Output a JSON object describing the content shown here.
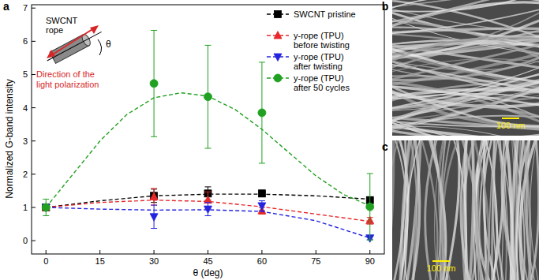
{
  "chart_data": {
    "type": "scatter",
    "panel_label": "a",
    "x_label": "θ (deg)",
    "y_label": "Normalized G-band intensity",
    "xlim": [
      -4,
      94
    ],
    "xticks": [
      0,
      15,
      30,
      45,
      60,
      75,
      90
    ],
    "ylim": [
      -0.4,
      7.1
    ],
    "yticks": [
      0,
      1,
      2,
      3,
      4,
      5,
      6,
      7
    ],
    "grid": false,
    "legend": "upper right",
    "inset": {
      "title": "SWCNT rope",
      "angle_label": "θ",
      "polarization_label": "Direction of the light polarization"
    },
    "series": [
      {
        "name": "SWCNT pristine",
        "color": "#000000",
        "marker": "square",
        "line_style": "dashed",
        "x": [
          0,
          30,
          45,
          60,
          90
        ],
        "values": [
          1,
          1.35,
          1.42,
          1.42,
          1.22
        ],
        "errors": [
          0.08,
          0.2,
          0.2,
          0.1,
          0.1
        ],
        "fit_x": [
          0,
          15,
          30,
          45,
          60,
          75,
          90
        ],
        "fit_values": [
          1,
          1.2,
          1.35,
          1.4,
          1.4,
          1.35,
          1.25
        ]
      },
      {
        "name": "y-rope (TPU) before twisting",
        "color": "#e8282b",
        "marker": "triangle-up",
        "line_style": "dashed",
        "x": [
          0,
          30,
          45,
          60,
          90
        ],
        "values": [
          1,
          1.32,
          1.22,
          0.9,
          0.6
        ],
        "errors": [
          0.08,
          0.25,
          0.25,
          0.1,
          0.1
        ],
        "fit_x": [
          0,
          15,
          30,
          45,
          60,
          75,
          90
        ],
        "fit_values": [
          1,
          1.15,
          1.22,
          1.18,
          1.02,
          0.8,
          0.58
        ]
      },
      {
        "name": "y-rope (TPU) after twisting",
        "color": "#2323e0",
        "marker": "triangle-down",
        "line_style": "dashed",
        "x": [
          0,
          30,
          45,
          60,
          90
        ],
        "values": [
          1,
          0.72,
          0.95,
          1.05,
          0.08
        ],
        "errors": [
          0.08,
          0.35,
          0.2,
          0.15,
          0.05
        ],
        "fit_x": [
          0,
          15,
          30,
          45,
          60,
          75,
          90
        ],
        "fit_values": [
          1,
          0.95,
          0.92,
          0.93,
          0.88,
          0.6,
          0.08
        ]
      },
      {
        "name": "y-rope (TPU) after 50 cycles",
        "color": "#21a121",
        "marker": "circle",
        "line_style": "dashed",
        "x": [
          0,
          30,
          45,
          60,
          90
        ],
        "values": [
          1,
          4.73,
          4.33,
          3.85,
          1.02
        ],
        "errors": [
          0.25,
          1.6,
          1.55,
          1.52,
          1.0
        ],
        "fit_x": [
          0,
          7.5,
          15,
          22.5,
          30,
          37.5,
          45,
          52.5,
          60,
          67.5,
          75,
          82.5,
          90
        ],
        "fit_values": [
          1,
          2.0,
          3.0,
          3.8,
          4.3,
          4.45,
          4.35,
          3.95,
          3.35,
          2.65,
          1.95,
          1.4,
          1.05
        ]
      }
    ]
  },
  "images": [
    {
      "label": "b",
      "scale_bar": "100 nm"
    },
    {
      "label": "c",
      "scale_bar": "100 nm"
    }
  ]
}
